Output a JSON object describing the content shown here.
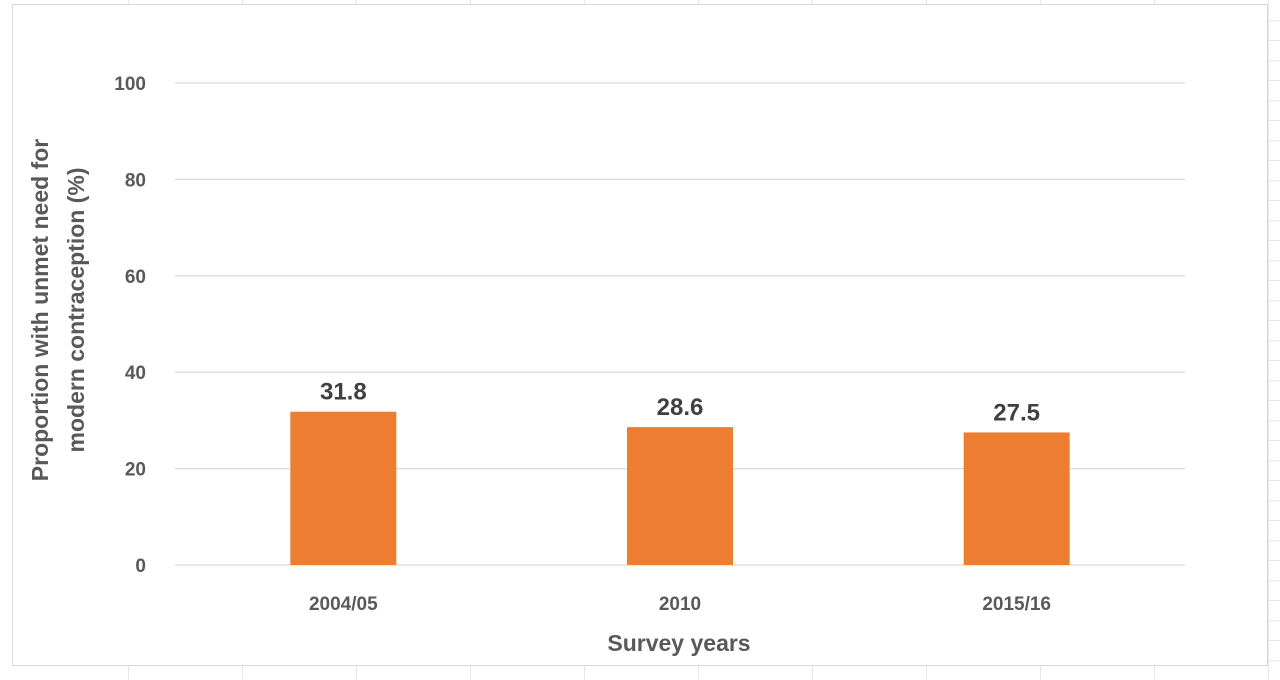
{
  "chart_data": {
    "type": "bar",
    "title": "",
    "categories": [
      "2004/05",
      "2010",
      "2015/16"
    ],
    "values": [
      31.8,
      28.6,
      27.5
    ],
    "data_labels": [
      "31.8",
      "28.6",
      "27.5"
    ],
    "xlabel": "Survey years",
    "ylabel_lines": [
      "Proportion with unmet need for",
      "modern contraception (%)"
    ],
    "ylim": [
      0,
      100
    ],
    "yticks": [
      0,
      20,
      40,
      60,
      80,
      100
    ],
    "ytick_labels": [
      "0",
      "20",
      "40",
      "60",
      "80",
      "100"
    ],
    "grid": true,
    "legend": "none",
    "bar_color": "#ED7D31",
    "grid_color": "#D9D9D9",
    "text_color": "#595959"
  }
}
